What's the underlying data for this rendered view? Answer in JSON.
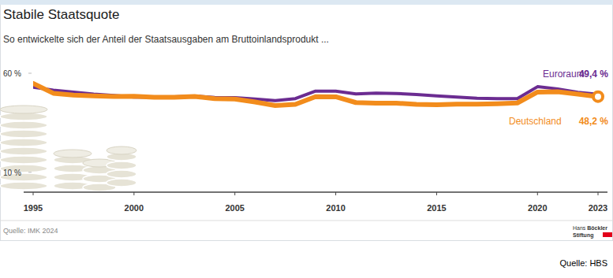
{
  "chart_data": {
    "type": "line",
    "title": "Stabile Staatsquote",
    "subtitle": "So entwickelte sich der Anteil der Staatsausgaben am Bruttoinlandsprodukt ...",
    "source": "Quelle: IMK 2024",
    "logo": [
      "Hans Böckler",
      "Stiftung"
    ],
    "credit": "Quelle: HBS",
    "x": [
      1995,
      1996,
      1997,
      1998,
      1999,
      2000,
      2001,
      2002,
      2003,
      2004,
      2005,
      2006,
      2007,
      2008,
      2009,
      2010,
      2011,
      2012,
      2013,
      2014,
      2015,
      2016,
      2017,
      2018,
      2019,
      2020,
      2021,
      2022,
      2023
    ],
    "xlim": [
      1995,
      2023
    ],
    "xticks": [
      1995,
      2000,
      2005,
      2010,
      2015,
      2020,
      2023
    ],
    "ylim": [
      0,
      60
    ],
    "yticks": [
      {
        "value": 10,
        "label": "10 %"
      },
      {
        "value": 60,
        "label": "60 %"
      }
    ],
    "grid": false,
    "series": [
      {
        "name": "Euroraum",
        "color": "#6b2c91",
        "values": [
          53.0,
          51.5,
          50.5,
          49.5,
          48.8,
          48.0,
          47.9,
          48.1,
          48.5,
          47.8,
          47.7,
          47.0,
          46.2,
          47.2,
          51.0,
          51.0,
          49.6,
          50.0,
          49.8,
          49.3,
          48.6,
          48.0,
          47.4,
          47.2,
          47.2,
          53.2,
          52.1,
          50.4,
          49.4
        ],
        "value_labels": [
          null,
          null,
          null,
          null,
          null,
          null,
          null,
          null,
          null,
          null,
          null,
          null,
          null,
          null,
          null,
          null,
          null,
          null,
          null,
          null,
          null,
          null,
          null,
          null,
          null,
          null,
          null,
          null,
          "49,4 %"
        ]
      },
      {
        "name": "Deutschland",
        "color": "#f28c1c",
        "marker": "circle",
        "values": [
          54.9,
          49.9,
          49.0,
          48.6,
          48.3,
          48.4,
          47.9,
          47.9,
          48.3,
          47.2,
          47.0,
          45.5,
          43.7,
          44.3,
          48.2,
          48.1,
          45.2,
          44.9,
          44.9,
          44.3,
          44.1,
          44.4,
          44.4,
          44.6,
          45.0,
          50.5,
          50.7,
          49.5,
          48.2
        ],
        "value_labels": [
          null,
          null,
          null,
          null,
          null,
          null,
          null,
          null,
          null,
          null,
          null,
          null,
          null,
          null,
          null,
          null,
          null,
          null,
          null,
          null,
          null,
          null,
          null,
          null,
          null,
          null,
          null,
          null,
          "48,2 %"
        ]
      }
    ]
  }
}
